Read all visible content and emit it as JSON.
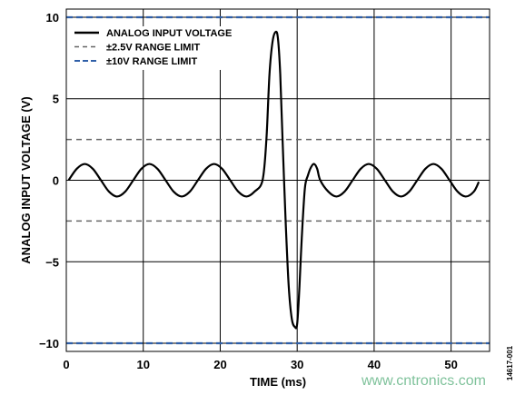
{
  "chart_data": {
    "type": "line",
    "title": "",
    "xlabel": "TIME (ms)",
    "ylabel": "ANALOG INPUT VOLTAGE (V)",
    "xlim": [
      0,
      55
    ],
    "ylim": [
      -10.5,
      10.5
    ],
    "xticks": [
      0,
      10,
      20,
      30,
      40,
      50
    ],
    "yticks": [
      10,
      5,
      0,
      -5,
      -10
    ],
    "ytick_labels": [
      "10",
      "5",
      "0",
      "−5",
      "−10"
    ],
    "grid": true,
    "legend_position": "top-left",
    "series": [
      {
        "name": "ANALOG INPUT VOLTAGE",
        "style": "solid",
        "color": "#000000",
        "x": [
          0.3,
          1.35,
          2.4,
          3.45,
          4.5,
          5.55,
          6.6,
          7.65,
          8.7,
          9.75,
          10.8,
          11.85,
          12.9,
          13.95,
          15.0,
          16.05,
          17.1,
          18.15,
          19.2,
          20.25,
          21.3,
          22.35,
          23.4,
          24.45,
          25.5,
          26.0,
          26.4,
          26.8,
          27.2,
          27.5,
          27.8,
          28.1,
          28.5,
          28.9,
          29.3,
          29.7,
          30.0,
          30.3,
          30.6,
          31.0,
          31.4,
          31.8,
          32.2,
          32.6,
          33.0,
          34.05,
          35.1,
          36.15,
          37.2,
          38.25,
          39.3,
          40.35,
          41.4,
          42.45,
          43.5,
          44.55,
          45.6,
          46.65,
          47.7,
          48.75,
          49.8,
          50.85,
          51.9,
          52.95,
          53.6
        ],
        "y": [
          0,
          0.7,
          1.0,
          0.7,
          0,
          -0.7,
          -1.0,
          -0.7,
          0,
          0.7,
          1.0,
          0.7,
          0,
          -0.7,
          -1.0,
          -0.7,
          0,
          0.7,
          1.0,
          0.7,
          0,
          -0.7,
          -1.0,
          -0.7,
          0,
          2.5,
          6.5,
          8.5,
          9.1,
          8.7,
          6.5,
          2.5,
          -2.5,
          -6.5,
          -8.5,
          -9.0,
          -8.8,
          -6.5,
          -3.5,
          -0.5,
          0.3,
          0.8,
          1.0,
          0.7,
          0,
          -0.7,
          -1.0,
          -0.7,
          0,
          0.7,
          1.0,
          0.7,
          0,
          -0.7,
          -1.0,
          -0.7,
          0,
          0.7,
          1.0,
          0.7,
          0,
          -0.7,
          -1.0,
          -0.7,
          -0.1
        ]
      },
      {
        "name": "±2.5V RANGE LIMIT",
        "style": "dashed",
        "color": "#666666",
        "levels": [
          2.5,
          -2.5
        ]
      },
      {
        "name": "±10V RANGE LIMIT",
        "style": "dashed",
        "color": "#2f5fa8",
        "levels": [
          10,
          -10
        ]
      }
    ]
  },
  "figure_id": "14617-001",
  "watermark": "www.cntronics.com"
}
